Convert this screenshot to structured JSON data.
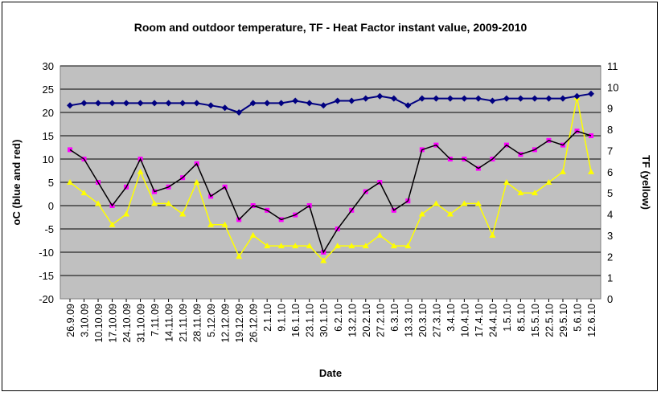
{
  "chart_data": {
    "type": "line",
    "title": "Room and outdoor temperature, TF - Heat Factor instant value, 2009-2010",
    "xlabel": "Date",
    "ylabel": "oC (blue and red)",
    "y2label": "TF (yellow)",
    "ylim": [
      -20,
      30
    ],
    "y2lim": [
      0,
      11
    ],
    "yticks": [
      -20,
      -15,
      -10,
      -5,
      0,
      5,
      10,
      15,
      20,
      25,
      30
    ],
    "y2ticks": [
      0,
      1,
      2,
      3,
      4,
      5,
      6,
      7,
      8,
      9,
      10,
      11
    ],
    "categories": [
      "26.9.09",
      "3.10.09",
      "10.10.09",
      "17.10.09",
      "24.10.09",
      "31.10.09",
      "7.11.09",
      "14.11.09",
      "21.11.09",
      "28.11.09",
      "5.12.09",
      "12.12.09",
      "19.12.09",
      "26.12.09",
      "2.1.10",
      "9.1.10",
      "16.1.10",
      "23.1.10",
      "30.1.10",
      "6.2.10",
      "13.2.10",
      "20.2.10",
      "27.2.10",
      "6.3.10",
      "13.3.10",
      "20.3.10",
      "27.3.10",
      "3.4.10",
      "10.4.10",
      "17.4.10",
      "24.4.10",
      "1.5.10",
      "8.5.10",
      "15.5.10",
      "22.5.10",
      "29.5.10",
      "5.6.10",
      "12.6.10"
    ],
    "grid": true,
    "colors": {
      "room": "#000080",
      "outdoor": "#ff00ff",
      "outdoor_line": "#000000",
      "heat_factor": "#ffff00",
      "plot_bg": "#c0c0c0"
    },
    "series": [
      {
        "name": "Room",
        "axis": "left",
        "values": [
          21.5,
          22.0,
          22.0,
          22.0,
          22.0,
          22.0,
          22.0,
          22.0,
          22.0,
          22.0,
          21.5,
          21.0,
          20.0,
          22.0,
          22.0,
          22.0,
          22.5,
          22.0,
          21.5,
          22.5,
          22.5,
          23.0,
          23.5,
          23.0,
          21.5,
          23.0,
          23.0,
          23.0,
          23.0,
          23.0,
          22.5,
          23.0,
          23.0,
          23.0,
          23.0,
          23.0,
          23.5,
          24.0
        ]
      },
      {
        "name": "Outdoor",
        "axis": "left",
        "values": [
          12,
          10,
          5,
          0,
          4,
          10,
          3,
          4,
          6,
          9,
          2,
          4,
          -3,
          0,
          -1,
          -3,
          -2,
          0,
          -10,
          -5,
          -1,
          3,
          5,
          -1,
          1,
          12,
          13,
          10,
          10,
          8,
          10,
          13,
          11,
          12,
          14,
          13,
          16,
          15
        ]
      },
      {
        "name": "Heat Factor",
        "axis": "right",
        "values": [
          5.5,
          5.0,
          4.5,
          3.5,
          4.0,
          6.0,
          4.5,
          4.5,
          4.0,
          5.5,
          3.5,
          3.5,
          2.0,
          3.0,
          2.5,
          2.5,
          2.5,
          2.5,
          1.8,
          2.5,
          2.5,
          2.5,
          3.0,
          2.5,
          2.5,
          4.0,
          4.5,
          4.0,
          4.5,
          4.5,
          3.0,
          5.5,
          5.0,
          5.0,
          5.5,
          6.0,
          9.5,
          6.0
        ]
      }
    ]
  }
}
